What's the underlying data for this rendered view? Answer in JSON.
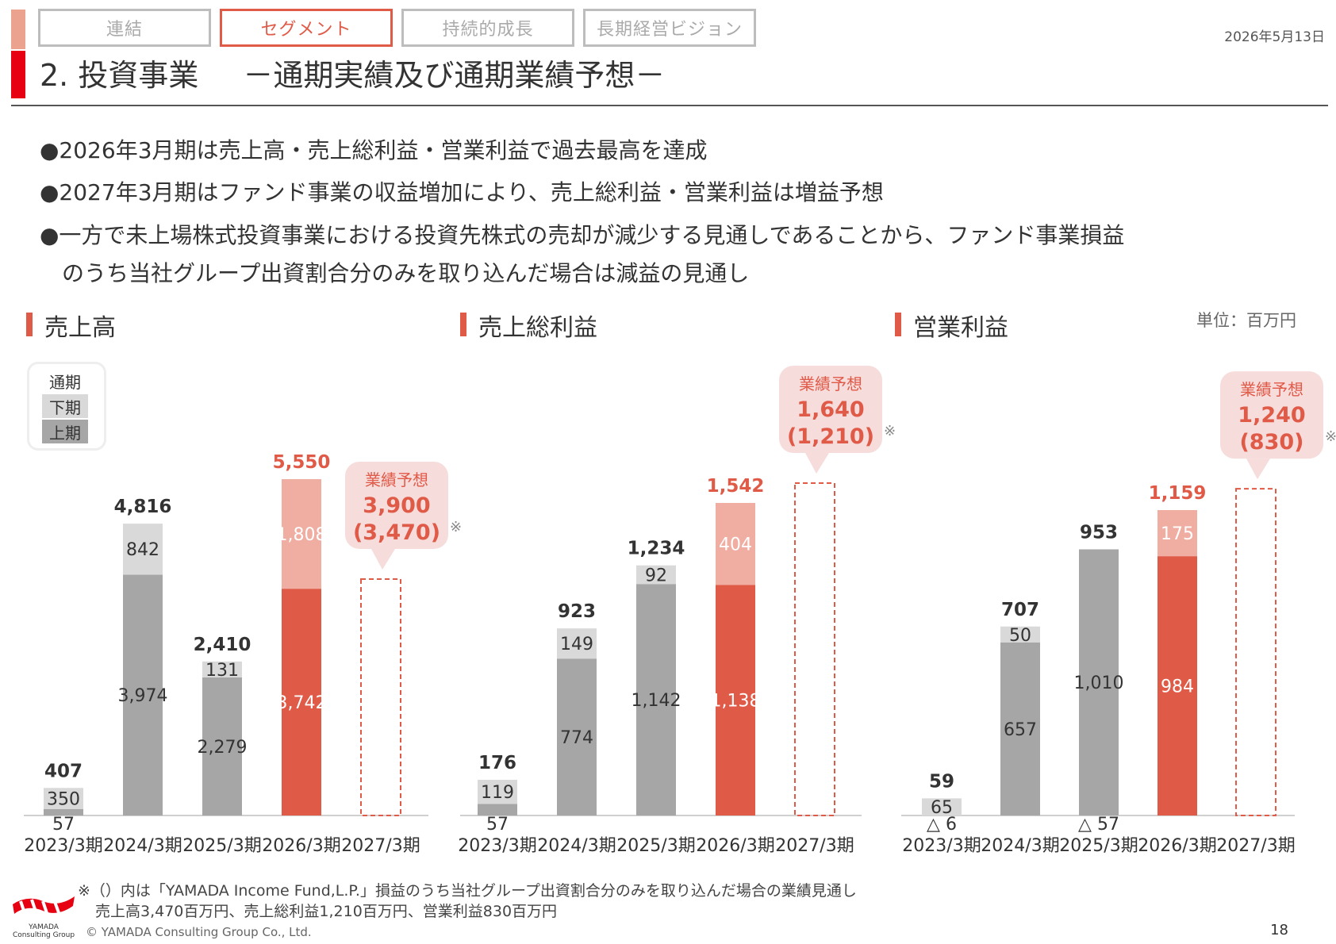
{
  "header": {
    "tabs": [
      {
        "label": "連結",
        "active": false
      },
      {
        "label": "セグメント",
        "active": true
      },
      {
        "label": "持続的成長",
        "active": false
      },
      {
        "label": "長期経営ビジョン",
        "active": false
      }
    ],
    "date": "2026年5月13日",
    "title_main": "2. 投資事業",
    "title_sub": "－通期実績及び通期業績予想－"
  },
  "bullets": [
    "●2026年3月期は売上高・売上総利益・営業利益で過去最高を達成",
    "●2027年3月期はファンド事業の収益増加により、売上総利益・営業利益は増益予想",
    "●一方で未上場株式投資事業における投資先株式の売却が減少する見通しであることから、ファンド事業損益",
    "のうち当社グループ出資割合分のみを取り込んだ場合は減益の見通し"
  ],
  "unit": "単位：百万円",
  "legend": {
    "full": "通期",
    "second": "下期",
    "first": "上期"
  },
  "colors": {
    "accent": "#e05a48",
    "first_half": "#a6a6a6",
    "second_half": "#d9d9d9",
    "highlight_first": "#e05a48",
    "highlight_second": "#f0aea3",
    "callout_bg": "#f7dcdc"
  },
  "chart_data": [
    {
      "type": "bar",
      "title": "売上高",
      "categories": [
        "2023/3期",
        "2024/3期",
        "2025/3期",
        "2026/3期",
        "2027/3期"
      ],
      "series": [
        {
          "name": "上期",
          "values": [
            57,
            3974,
            2279,
            3742,
            null
          ]
        },
        {
          "name": "下期",
          "values": [
            350,
            842,
            131,
            1808,
            null
          ]
        }
      ],
      "totals": [
        407,
        4816,
        2410,
        5550,
        3900
      ],
      "total_labels": [
        "407",
        "4,816",
        "2,410",
        "5,550"
      ],
      "first_labels": [
        "57",
        "3,974",
        "2,279",
        "3,742"
      ],
      "second_labels": [
        "350",
        "842",
        "131",
        "1,808"
      ],
      "forecast": {
        "label": "業績予想",
        "value": "3,900",
        "alt": "(3,470)",
        "mark": "※"
      },
      "highlight_index": 3,
      "ylim": [
        0,
        5550
      ]
    },
    {
      "type": "bar",
      "title": "売上総利益",
      "categories": [
        "2023/3期",
        "2024/3期",
        "2025/3期",
        "2026/3期",
        "2027/3期"
      ],
      "series": [
        {
          "name": "上期",
          "values": [
            57,
            774,
            1142,
            1138,
            null
          ]
        },
        {
          "name": "下期",
          "values": [
            119,
            149,
            92,
            404,
            null
          ]
        }
      ],
      "totals": [
        176,
        923,
        1234,
        1542,
        1640
      ],
      "total_labels": [
        "176",
        "923",
        "1,234",
        "1,542"
      ],
      "first_labels": [
        "57",
        "774",
        "1,142",
        "1,138"
      ],
      "second_labels": [
        "119",
        "149",
        "92",
        "404"
      ],
      "forecast": {
        "label": "業績予想",
        "value": "1,640",
        "alt": "(1,210)",
        "mark": "※"
      },
      "highlight_index": 3,
      "ylim": [
        0,
        1542
      ]
    },
    {
      "type": "bar",
      "title": "営業利益",
      "categories": [
        "2023/3期",
        "2024/3期",
        "2025/3期",
        "2026/3期",
        "2027/3期"
      ],
      "series": [
        {
          "name": "上期",
          "values": [
            -6,
            657,
            1010,
            984,
            null
          ]
        },
        {
          "name": "下期",
          "values": [
            65,
            50,
            -57,
            175,
            null
          ]
        }
      ],
      "totals": [
        59,
        707,
        953,
        1159,
        1240
      ],
      "total_labels": [
        "59",
        "707",
        "953",
        "1,159"
      ],
      "first_labels": [
        "△ 6",
        "657",
        "1,010",
        "984"
      ],
      "second_labels": [
        "65",
        "50",
        "△ 57",
        "175"
      ],
      "forecast": {
        "label": "業績予想",
        "value": "1,240",
        "alt": "(830)",
        "mark": "※"
      },
      "highlight_index": 3,
      "ylim": [
        0,
        1159
      ]
    }
  ],
  "footnote": {
    "line1": "※（）内は「YAMADA Income Fund,L.P.」損益のうち当社グループ出資割合分のみを取り込んだ場合の業績見通し",
    "line2": "売上高3,470百万円、売上総利益1,210百万円、営業利益830百万円"
  },
  "logo_text": "YAMADA Consulting Group",
  "copyright": "© YAMADA Consulting Group Co., Ltd.",
  "page_number": "18"
}
